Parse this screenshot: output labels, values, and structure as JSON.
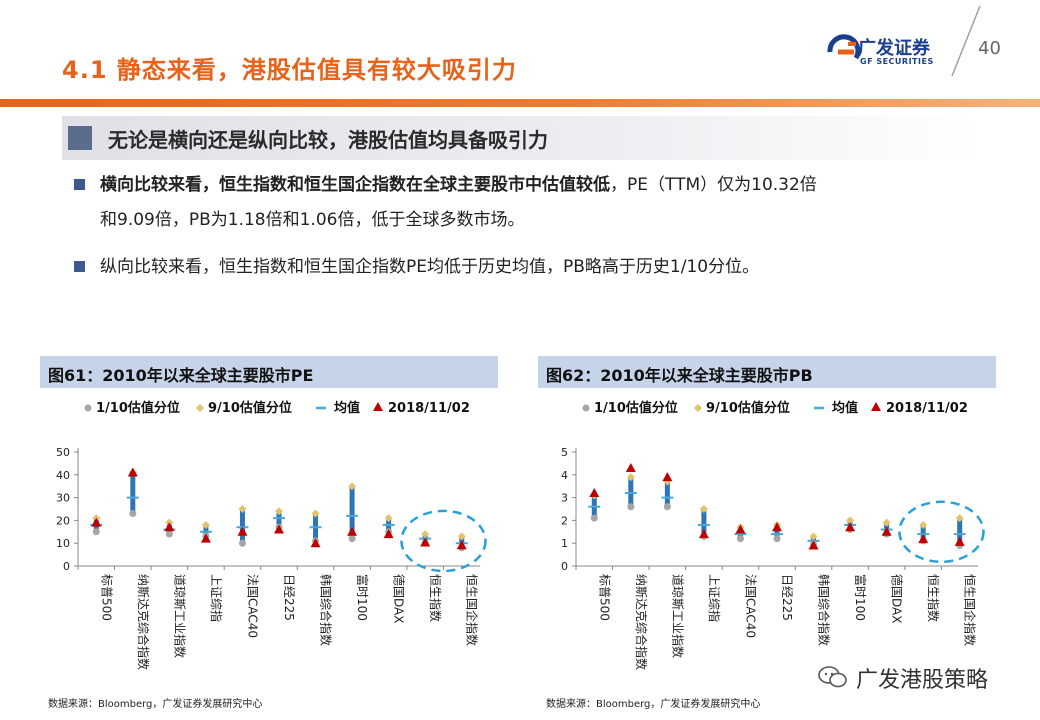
{
  "header": {
    "title": "4.1 静态来看，港股估值具有较大吸引力",
    "logo_name": "广发证券",
    "logo_en": "GF SECURITIES",
    "page_number": "40",
    "accent_color": "#e8631a"
  },
  "subtitle": "无论是横向还是纵向比较，港股估值均具备吸引力",
  "bullets": [
    {
      "bold": "横向比较来看，恒生指数和恒生国企指数在全球主要股市中估值较低",
      "rest": "，PE（TTM）仅为10.32倍",
      "line2": "和9.09倍，PB为1.18倍和1.06倍，低于全球多数市场。"
    },
    {
      "text": "纵向比较来看，恒生指数和恒生国企指数PE均低于历史均值，PB略高于历史1/10分位。"
    }
  ],
  "legend": {
    "p10": "1/10估值分位",
    "p90": "9/10估值分位",
    "mean": "均值",
    "current": "2018/11/02"
  },
  "chart_data": [
    {
      "type": "range",
      "title": "图61：2010年以来全球主要股市PE",
      "ylim": [
        0,
        50
      ],
      "yticks": [
        0,
        10,
        20,
        30,
        40,
        50
      ],
      "categories": [
        "标普500",
        "纳斯达克综合指数",
        "道琼斯工业指数",
        "上证综指",
        "法国CAC40",
        "日经225",
        "韩国综合指数",
        "富时100",
        "德国DAX",
        "恒生指数",
        "恒生国企指数"
      ],
      "series": [
        {
          "name": "1/10估值分位",
          "values": [
            15,
            23,
            14,
            13,
            10,
            17,
            11,
            12,
            15,
            10,
            8
          ]
        },
        {
          "name": "9/10估值分位",
          "values": [
            21,
            41,
            19,
            18,
            25,
            24,
            23,
            35,
            21,
            14,
            13
          ]
        },
        {
          "name": "均值",
          "values": [
            18,
            30,
            16,
            15,
            17,
            21,
            17,
            22,
            18,
            12,
            10
          ]
        },
        {
          "name": "2018/11/02",
          "values": [
            19,
            41,
            17,
            12,
            15,
            16,
            10,
            15,
            14,
            10.32,
            9.09
          ]
        }
      ],
      "highlight": [
        "恒生指数",
        "恒生国企指数"
      ],
      "source": "数据来源：Bloomberg，广发证券发展研究中心"
    },
    {
      "type": "range",
      "title": "图62：2010年以来全球主要股市PB",
      "ylim": [
        0,
        5
      ],
      "yticks": [
        0,
        1,
        2,
        3,
        4,
        5
      ],
      "categories": [
        "标普500",
        "纳斯达克综合指数",
        "道琼斯工业指数",
        "上证综指",
        "法国CAC40",
        "日经225",
        "韩国综合指数",
        "富时100",
        "德国DAX",
        "恒生指数",
        "恒生国企指数"
      ],
      "series": [
        {
          "name": "1/10估值分位",
          "values": [
            2.1,
            2.6,
            2.6,
            1.3,
            1.2,
            1.2,
            0.95,
            1.6,
            1.4,
            1.1,
            0.9
          ]
        },
        {
          "name": "9/10估值分位",
          "values": [
            3.1,
            3.9,
            3.7,
            2.5,
            1.7,
            1.8,
            1.3,
            2.0,
            1.9,
            1.8,
            2.1
          ]
        },
        {
          "name": "均值",
          "values": [
            2.6,
            3.2,
            3.0,
            1.8,
            1.4,
            1.4,
            1.1,
            1.8,
            1.6,
            1.4,
            1.4
          ]
        },
        {
          "name": "2018/11/02",
          "values": [
            3.2,
            4.3,
            3.9,
            1.4,
            1.6,
            1.7,
            0.9,
            1.7,
            1.5,
            1.18,
            1.06
          ]
        }
      ],
      "highlight": [
        "恒生指数",
        "恒生国企指数"
      ],
      "source": "数据来源：Bloomberg，广发证券发展研究中心"
    }
  ],
  "colors": {
    "range_bar": "#2e75b6",
    "p10": "#a6a6a6",
    "p90": "#e2c36b",
    "mean": "#4aa8d8",
    "current": "#c00000",
    "highlight_circle": "#2aa0d8",
    "panel_header": "#c6d4ea"
  },
  "watermark": "广发港股策略"
}
